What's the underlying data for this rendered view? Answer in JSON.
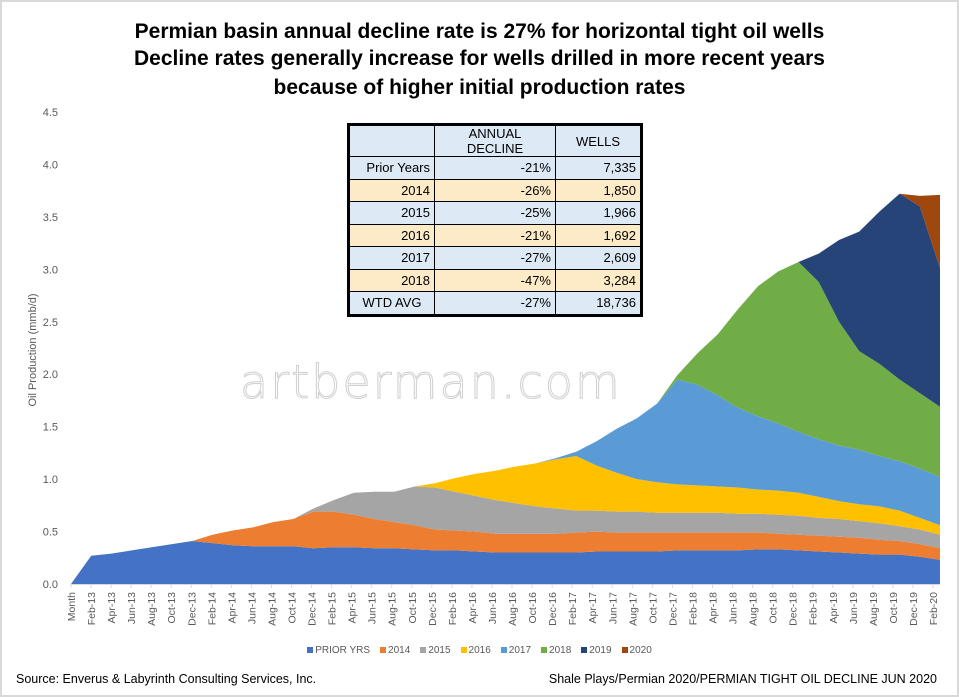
{
  "titles": [
    "Permian basin annual decline rate is 27% for horizontal tight oil wells",
    "Decline rates generally increase for wells drilled in more recent years",
    "because of higher initial  production rates"
  ],
  "watermark": "artberman.com",
  "table": {
    "headers": [
      "",
      "ANNUAL DECLINE",
      "WELLS"
    ],
    "rows": [
      [
        "Prior Years",
        "-21%",
        "7,335"
      ],
      [
        "2014",
        "-26%",
        "1,850"
      ],
      [
        "2015",
        "-25%",
        "1,966"
      ],
      [
        "2016",
        "-21%",
        "1,692"
      ],
      [
        "2017",
        "-27%",
        "2,609"
      ],
      [
        "2018",
        "-47%",
        "3,284"
      ],
      [
        "WTD AVG",
        "-27%",
        "18,736"
      ]
    ]
  },
  "footer": {
    "source": "Source: Enverus & Labyrinth Consulting Services, Inc.",
    "path": "Shale Plays/Permian 2020/PERMIAN TIGHT OIL DECLINE JUN 2020"
  },
  "chart_data": {
    "type": "area",
    "stacked": true,
    "title": "Permian basin annual decline rate is 27% for horizontal tight oil wells",
    "xlabel": "",
    "ylabel": "Oil Production  (mmb/d)",
    "ylim": [
      0,
      4.5
    ],
    "yticks": [
      "0.0",
      "0.5",
      "1.0",
      "1.5",
      "2.0",
      "2.5",
      "3.0",
      "3.5",
      "4.0",
      "4.5"
    ],
    "grid": false,
    "legend": "bottom",
    "x": [
      "Month",
      "Feb-13",
      "Apr-13",
      "Jun-13",
      "Aug-13",
      "Oct-13",
      "Dec-13",
      "Feb-14",
      "Apr-14",
      "Jun-14",
      "Aug-14",
      "Oct-14",
      "Dec-14",
      "Feb-15",
      "Apr-15",
      "Jun-15",
      "Aug-15",
      "Oct-15",
      "Dec-15",
      "Feb-16",
      "Apr-16",
      "Jun-16",
      "Aug-16",
      "Oct-16",
      "Dec-16",
      "Feb-17",
      "Apr-17",
      "Jun-17",
      "Aug-17",
      "Oct-17",
      "Dec-17",
      "Feb-18",
      "Apr-18",
      "Jun-18",
      "Aug-18",
      "Oct-18",
      "Dec-18",
      "Feb-19",
      "Apr-19",
      "Jun-19",
      "Aug-19",
      "Oct-19",
      "Dec-19",
      "Feb-20"
    ],
    "series": [
      {
        "name": "PRIOR YRS",
        "color": "#4472c4",
        "values": [
          0,
          0.27,
          0.29,
          0.32,
          0.35,
          0.38,
          0.41,
          0.39,
          0.37,
          0.36,
          0.36,
          0.36,
          0.34,
          0.35,
          0.35,
          0.34,
          0.34,
          0.33,
          0.32,
          0.32,
          0.31,
          0.3,
          0.3,
          0.3,
          0.3,
          0.3,
          0.31,
          0.31,
          0.31,
          0.31,
          0.32,
          0.32,
          0.32,
          0.32,
          0.33,
          0.33,
          0.32,
          0.31,
          0.3,
          0.29,
          0.28,
          0.28,
          0.26,
          0.23
        ]
      },
      {
        "name": "2014",
        "color": "#ed7d31",
        "values": [
          0,
          0,
          0,
          0,
          0,
          0,
          0,
          0.08,
          0.14,
          0.18,
          0.23,
          0.26,
          0.35,
          0.34,
          0.31,
          0.28,
          0.25,
          0.23,
          0.2,
          0.19,
          0.19,
          0.18,
          0.18,
          0.18,
          0.18,
          0.19,
          0.19,
          0.18,
          0.18,
          0.18,
          0.17,
          0.17,
          0.17,
          0.17,
          0.16,
          0.15,
          0.15,
          0.15,
          0.15,
          0.15,
          0.14,
          0.13,
          0.12,
          0.11
        ]
      },
      {
        "name": "2015",
        "color": "#a5a5a5",
        "values": [
          0,
          0,
          0,
          0,
          0,
          0,
          0,
          0,
          0,
          0,
          0,
          0,
          0.03,
          0.11,
          0.21,
          0.26,
          0.29,
          0.37,
          0.4,
          0.37,
          0.34,
          0.32,
          0.29,
          0.26,
          0.24,
          0.21,
          0.2,
          0.2,
          0.2,
          0.19,
          0.19,
          0.19,
          0.19,
          0.18,
          0.18,
          0.18,
          0.18,
          0.17,
          0.17,
          0.16,
          0.16,
          0.14,
          0.14,
          0.13
        ]
      },
      {
        "name": "2016",
        "color": "#ffc000",
        "values": [
          0,
          0,
          0,
          0,
          0,
          0,
          0,
          0,
          0,
          0,
          0,
          0,
          0,
          0,
          0,
          0,
          0,
          0,
          0.04,
          0.13,
          0.21,
          0.28,
          0.35,
          0.41,
          0.47,
          0.52,
          0.43,
          0.37,
          0.31,
          0.29,
          0.27,
          0.26,
          0.25,
          0.25,
          0.23,
          0.23,
          0.22,
          0.2,
          0.17,
          0.16,
          0.16,
          0.15,
          0.11,
          0.09
        ]
      },
      {
        "name": "2017",
        "color": "#5b9bd5",
        "values": [
          0,
          0,
          0,
          0,
          0,
          0,
          0,
          0,
          0,
          0,
          0,
          0,
          0,
          0,
          0,
          0,
          0,
          0,
          0,
          0,
          0,
          0,
          0,
          0,
          0.01,
          0.04,
          0.23,
          0.42,
          0.58,
          0.75,
          1.0,
          0.96,
          0.87,
          0.76,
          0.7,
          0.64,
          0.58,
          0.55,
          0.53,
          0.52,
          0.48,
          0.47,
          0.47,
          0.46
        ]
      },
      {
        "name": "2018",
        "color": "#70ad47",
        "values": [
          0,
          0,
          0,
          0,
          0,
          0,
          0,
          0,
          0,
          0,
          0,
          0,
          0,
          0,
          0,
          0,
          0,
          0,
          0,
          0,
          0,
          0,
          0,
          0,
          0,
          0,
          0,
          0,
          0,
          0,
          0.04,
          0.3,
          0.58,
          0.94,
          1.24,
          1.45,
          1.62,
          1.5,
          1.18,
          0.94,
          0.88,
          0.78,
          0.72,
          0.67
        ]
      },
      {
        "name": "2019",
        "color": "#264478",
        "values": [
          0,
          0,
          0,
          0,
          0,
          0,
          0,
          0,
          0,
          0,
          0,
          0,
          0,
          0,
          0,
          0,
          0,
          0,
          0,
          0,
          0,
          0,
          0,
          0,
          0,
          0,
          0,
          0,
          0,
          0,
          0,
          0,
          0,
          0,
          0,
          0,
          0,
          0.27,
          0.78,
          1.14,
          1.45,
          1.77,
          1.78,
          1.32
        ]
      },
      {
        "name": "2020",
        "color": "#9e480e",
        "values": [
          0,
          0,
          0,
          0,
          0,
          0,
          0,
          0,
          0,
          0,
          0,
          0,
          0,
          0,
          0,
          0,
          0,
          0,
          0,
          0,
          0,
          0,
          0,
          0,
          0,
          0,
          0,
          0,
          0,
          0,
          0,
          0,
          0,
          0,
          0,
          0,
          0,
          0,
          0,
          0,
          0,
          0,
          0.1,
          0.7
        ]
      }
    ]
  }
}
